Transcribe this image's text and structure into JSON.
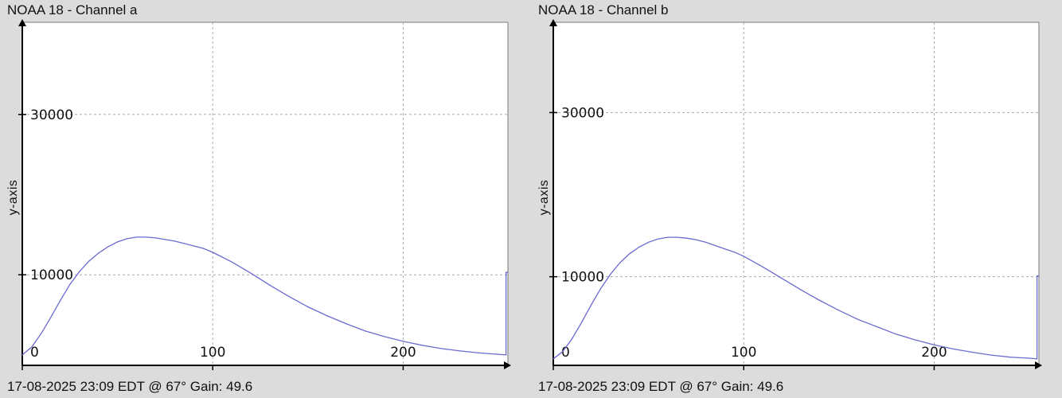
{
  "chart_data": [
    {
      "type": "line",
      "title": "NOAA 18 - Channel a",
      "ylabel": "y-axis",
      "xlabel": "",
      "footer": "17-08-2025 23:09 EDT @ 67° Gain: 49.6",
      "xlim": [
        0,
        255
      ],
      "ylim": [
        -1300,
        41500
      ],
      "xticks": [
        0,
        100,
        200
      ],
      "xtick_labels": [
        "0",
        "100",
        "200"
      ],
      "yticks": [
        10000,
        30000
      ],
      "ytick_labels": [
        "10000",
        "30000"
      ],
      "grid": true,
      "color": "#6b6bd0",
      "series": [
        {
          "x": [
            0,
            5,
            10,
            15,
            20,
            25,
            30,
            35,
            40,
            45,
            50,
            55,
            60,
            65,
            70,
            75,
            80,
            85,
            90,
            95,
            100,
            110,
            120,
            130,
            140,
            150,
            160,
            170,
            180,
            190,
            200,
            210,
            220,
            230,
            240,
            250,
            254,
            254,
            255
          ],
          "y": [
            0,
            1000,
            2700,
            4700,
            6800,
            8800,
            10400,
            11700,
            12700,
            13500,
            14100,
            14500,
            14700,
            14700,
            14600,
            14400,
            14200,
            13900,
            13600,
            13300,
            12800,
            11600,
            10200,
            8700,
            7300,
            6000,
            4900,
            3900,
            3000,
            2300,
            1700,
            1200,
            800,
            500,
            250,
            80,
            0,
            10300,
            10300
          ]
        }
      ]
    },
    {
      "type": "line",
      "title": "NOAA 18 - Channel b",
      "ylabel": "y-axis",
      "xlabel": "",
      "footer": "17-08-2025 23:09 EDT @ 67° Gain: 49.6",
      "xlim": [
        0,
        255
      ],
      "ylim": [
        -800,
        41000
      ],
      "xticks": [
        0,
        100,
        200
      ],
      "xtick_labels": [
        "0",
        "100",
        "200"
      ],
      "yticks": [
        10000,
        30000
      ],
      "ytick_labels": [
        "10000",
        "30000"
      ],
      "grid": true,
      "color": "#6b6bd0",
      "series": [
        {
          "x": [
            0,
            5,
            10,
            15,
            20,
            25,
            30,
            35,
            40,
            45,
            50,
            55,
            60,
            65,
            70,
            75,
            80,
            85,
            90,
            95,
            100,
            110,
            120,
            130,
            140,
            150,
            160,
            170,
            180,
            190,
            200,
            210,
            220,
            230,
            240,
            250,
            254,
            254,
            255
          ],
          "y": [
            0,
            900,
            2500,
            4500,
            6600,
            8600,
            10300,
            11700,
            12800,
            13600,
            14200,
            14600,
            14800,
            14800,
            14700,
            14500,
            14200,
            13800,
            13400,
            13000,
            12500,
            11200,
            9800,
            8400,
            7100,
            5900,
            4800,
            3900,
            3000,
            2300,
            1700,
            1200,
            800,
            450,
            200,
            70,
            0,
            10100,
            10100
          ]
        }
      ]
    }
  ]
}
